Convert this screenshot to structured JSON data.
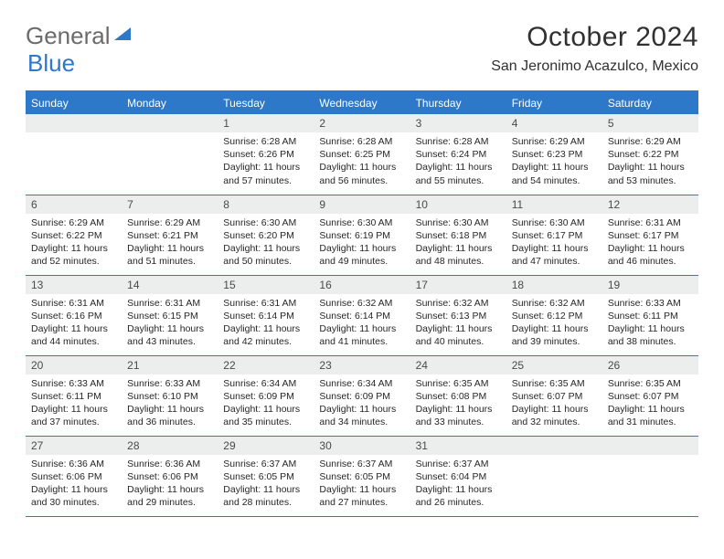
{
  "logo": {
    "part1": "General",
    "part2": "Blue"
  },
  "title": "October 2024",
  "location": "San Jeronimo Acazulco, Mexico",
  "colors": {
    "header_bg": "#2d78c8",
    "header_text": "#ffffff",
    "daynum_bg": "#eceded",
    "text": "#262626",
    "rule": "#2d78c8",
    "logo_gray": "#6b6b6b",
    "logo_blue": "#2d78c8",
    "page_bg": "#ffffff"
  },
  "fonts": {
    "title_pt": 30,
    "location_pt": 16,
    "weekday_pt": 12,
    "daynum_pt": 12,
    "body_pt": 10.5
  },
  "weekdays": [
    "Sunday",
    "Monday",
    "Tuesday",
    "Wednesday",
    "Thursday",
    "Friday",
    "Saturday"
  ],
  "weeks": [
    [
      {
        "num": "",
        "sunrise": "",
        "sunset": "",
        "daylight": ""
      },
      {
        "num": "",
        "sunrise": "",
        "sunset": "",
        "daylight": ""
      },
      {
        "num": "1",
        "sunrise": "Sunrise: 6:28 AM",
        "sunset": "Sunset: 6:26 PM",
        "daylight": "Daylight: 11 hours and 57 minutes."
      },
      {
        "num": "2",
        "sunrise": "Sunrise: 6:28 AM",
        "sunset": "Sunset: 6:25 PM",
        "daylight": "Daylight: 11 hours and 56 minutes."
      },
      {
        "num": "3",
        "sunrise": "Sunrise: 6:28 AM",
        "sunset": "Sunset: 6:24 PM",
        "daylight": "Daylight: 11 hours and 55 minutes."
      },
      {
        "num": "4",
        "sunrise": "Sunrise: 6:29 AM",
        "sunset": "Sunset: 6:23 PM",
        "daylight": "Daylight: 11 hours and 54 minutes."
      },
      {
        "num": "5",
        "sunrise": "Sunrise: 6:29 AM",
        "sunset": "Sunset: 6:22 PM",
        "daylight": "Daylight: 11 hours and 53 minutes."
      }
    ],
    [
      {
        "num": "6",
        "sunrise": "Sunrise: 6:29 AM",
        "sunset": "Sunset: 6:22 PM",
        "daylight": "Daylight: 11 hours and 52 minutes."
      },
      {
        "num": "7",
        "sunrise": "Sunrise: 6:29 AM",
        "sunset": "Sunset: 6:21 PM",
        "daylight": "Daylight: 11 hours and 51 minutes."
      },
      {
        "num": "8",
        "sunrise": "Sunrise: 6:30 AM",
        "sunset": "Sunset: 6:20 PM",
        "daylight": "Daylight: 11 hours and 50 minutes."
      },
      {
        "num": "9",
        "sunrise": "Sunrise: 6:30 AM",
        "sunset": "Sunset: 6:19 PM",
        "daylight": "Daylight: 11 hours and 49 minutes."
      },
      {
        "num": "10",
        "sunrise": "Sunrise: 6:30 AM",
        "sunset": "Sunset: 6:18 PM",
        "daylight": "Daylight: 11 hours and 48 minutes."
      },
      {
        "num": "11",
        "sunrise": "Sunrise: 6:30 AM",
        "sunset": "Sunset: 6:17 PM",
        "daylight": "Daylight: 11 hours and 47 minutes."
      },
      {
        "num": "12",
        "sunrise": "Sunrise: 6:31 AM",
        "sunset": "Sunset: 6:17 PM",
        "daylight": "Daylight: 11 hours and 46 minutes."
      }
    ],
    [
      {
        "num": "13",
        "sunrise": "Sunrise: 6:31 AM",
        "sunset": "Sunset: 6:16 PM",
        "daylight": "Daylight: 11 hours and 44 minutes."
      },
      {
        "num": "14",
        "sunrise": "Sunrise: 6:31 AM",
        "sunset": "Sunset: 6:15 PM",
        "daylight": "Daylight: 11 hours and 43 minutes."
      },
      {
        "num": "15",
        "sunrise": "Sunrise: 6:31 AM",
        "sunset": "Sunset: 6:14 PM",
        "daylight": "Daylight: 11 hours and 42 minutes."
      },
      {
        "num": "16",
        "sunrise": "Sunrise: 6:32 AM",
        "sunset": "Sunset: 6:14 PM",
        "daylight": "Daylight: 11 hours and 41 minutes."
      },
      {
        "num": "17",
        "sunrise": "Sunrise: 6:32 AM",
        "sunset": "Sunset: 6:13 PM",
        "daylight": "Daylight: 11 hours and 40 minutes."
      },
      {
        "num": "18",
        "sunrise": "Sunrise: 6:32 AM",
        "sunset": "Sunset: 6:12 PM",
        "daylight": "Daylight: 11 hours and 39 minutes."
      },
      {
        "num": "19",
        "sunrise": "Sunrise: 6:33 AM",
        "sunset": "Sunset: 6:11 PM",
        "daylight": "Daylight: 11 hours and 38 minutes."
      }
    ],
    [
      {
        "num": "20",
        "sunrise": "Sunrise: 6:33 AM",
        "sunset": "Sunset: 6:11 PM",
        "daylight": "Daylight: 11 hours and 37 minutes."
      },
      {
        "num": "21",
        "sunrise": "Sunrise: 6:33 AM",
        "sunset": "Sunset: 6:10 PM",
        "daylight": "Daylight: 11 hours and 36 minutes."
      },
      {
        "num": "22",
        "sunrise": "Sunrise: 6:34 AM",
        "sunset": "Sunset: 6:09 PM",
        "daylight": "Daylight: 11 hours and 35 minutes."
      },
      {
        "num": "23",
        "sunrise": "Sunrise: 6:34 AM",
        "sunset": "Sunset: 6:09 PM",
        "daylight": "Daylight: 11 hours and 34 minutes."
      },
      {
        "num": "24",
        "sunrise": "Sunrise: 6:35 AM",
        "sunset": "Sunset: 6:08 PM",
        "daylight": "Daylight: 11 hours and 33 minutes."
      },
      {
        "num": "25",
        "sunrise": "Sunrise: 6:35 AM",
        "sunset": "Sunset: 6:07 PM",
        "daylight": "Daylight: 11 hours and 32 minutes."
      },
      {
        "num": "26",
        "sunrise": "Sunrise: 6:35 AM",
        "sunset": "Sunset: 6:07 PM",
        "daylight": "Daylight: 11 hours and 31 minutes."
      }
    ],
    [
      {
        "num": "27",
        "sunrise": "Sunrise: 6:36 AM",
        "sunset": "Sunset: 6:06 PM",
        "daylight": "Daylight: 11 hours and 30 minutes."
      },
      {
        "num": "28",
        "sunrise": "Sunrise: 6:36 AM",
        "sunset": "Sunset: 6:06 PM",
        "daylight": "Daylight: 11 hours and 29 minutes."
      },
      {
        "num": "29",
        "sunrise": "Sunrise: 6:37 AM",
        "sunset": "Sunset: 6:05 PM",
        "daylight": "Daylight: 11 hours and 28 minutes."
      },
      {
        "num": "30",
        "sunrise": "Sunrise: 6:37 AM",
        "sunset": "Sunset: 6:05 PM",
        "daylight": "Daylight: 11 hours and 27 minutes."
      },
      {
        "num": "31",
        "sunrise": "Sunrise: 6:37 AM",
        "sunset": "Sunset: 6:04 PM",
        "daylight": "Daylight: 11 hours and 26 minutes."
      },
      {
        "num": "",
        "sunrise": "",
        "sunset": "",
        "daylight": ""
      },
      {
        "num": "",
        "sunrise": "",
        "sunset": "",
        "daylight": ""
      }
    ]
  ]
}
